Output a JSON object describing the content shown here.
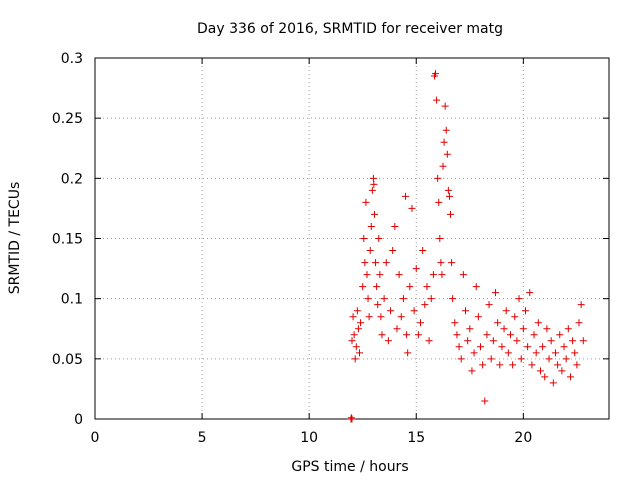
{
  "chart_data": {
    "type": "scatter",
    "title": "Day 336 of 2016, SRMTID for receiver matg",
    "xlabel": "GPS time / hours",
    "ylabel": "SRMTID / TECUs",
    "xlim": [
      0,
      24
    ],
    "ylim": [
      0,
      0.3
    ],
    "xticks": [
      0,
      5,
      10,
      15,
      20
    ],
    "xtick_labels": [
      "0",
      "5",
      "10",
      "15",
      "20"
    ],
    "yticks": [
      0,
      0.05,
      0.1,
      0.15,
      0.2,
      0.25,
      0.3
    ],
    "ytick_labels": [
      "0",
      "0.05",
      "0.1",
      "0.15",
      "0.2",
      "0.25",
      "0.3"
    ],
    "grid": true,
    "marker": "plus",
    "marker_color": "#e00000",
    "series": [
      {
        "name": "SRMTID",
        "points": [
          [
            11.95,
            0.0
          ],
          [
            11.97,
            0.001
          ],
          [
            12.0,
            0.0
          ],
          [
            12.0,
            0.065
          ],
          [
            12.05,
            0.085
          ],
          [
            12.1,
            0.07
          ],
          [
            12.15,
            0.05
          ],
          [
            12.2,
            0.06
          ],
          [
            12.25,
            0.09
          ],
          [
            12.3,
            0.075
          ],
          [
            12.35,
            0.055
          ],
          [
            12.4,
            0.08
          ],
          [
            12.5,
            0.11
          ],
          [
            12.55,
            0.15
          ],
          [
            12.6,
            0.13
          ],
          [
            12.65,
            0.18
          ],
          [
            12.7,
            0.12
          ],
          [
            12.75,
            0.1
          ],
          [
            12.8,
            0.085
          ],
          [
            12.85,
            0.14
          ],
          [
            12.9,
            0.16
          ],
          [
            12.95,
            0.19
          ],
          [
            13.0,
            0.2
          ],
          [
            13.02,
            0.195
          ],
          [
            13.05,
            0.17
          ],
          [
            13.1,
            0.13
          ],
          [
            13.15,
            0.11
          ],
          [
            13.2,
            0.095
          ],
          [
            13.25,
            0.15
          ],
          [
            13.3,
            0.12
          ],
          [
            13.35,
            0.085
          ],
          [
            13.4,
            0.07
          ],
          [
            13.5,
            0.1
          ],
          [
            13.6,
            0.13
          ],
          [
            13.7,
            0.065
          ],
          [
            13.8,
            0.09
          ],
          [
            13.9,
            0.14
          ],
          [
            14.0,
            0.16
          ],
          [
            14.1,
            0.075
          ],
          [
            14.2,
            0.12
          ],
          [
            14.3,
            0.085
          ],
          [
            14.4,
            0.1
          ],
          [
            14.5,
            0.185
          ],
          [
            14.55,
            0.07
          ],
          [
            14.6,
            0.055
          ],
          [
            14.7,
            0.11
          ],
          [
            14.8,
            0.175
          ],
          [
            14.9,
            0.09
          ],
          [
            15.0,
            0.125
          ],
          [
            15.1,
            0.07
          ],
          [
            15.2,
            0.08
          ],
          [
            15.3,
            0.14
          ],
          [
            15.4,
            0.095
          ],
          [
            15.5,
            0.11
          ],
          [
            15.6,
            0.065
          ],
          [
            15.7,
            0.1
          ],
          [
            15.8,
            0.12
          ],
          [
            15.85,
            0.285
          ],
          [
            15.9,
            0.287
          ],
          [
            15.95,
            0.265
          ],
          [
            16.0,
            0.2
          ],
          [
            16.05,
            0.18
          ],
          [
            16.1,
            0.15
          ],
          [
            16.15,
            0.13
          ],
          [
            16.2,
            0.12
          ],
          [
            16.25,
            0.21
          ],
          [
            16.3,
            0.23
          ],
          [
            16.35,
            0.26
          ],
          [
            16.4,
            0.24
          ],
          [
            16.45,
            0.22
          ],
          [
            16.5,
            0.19
          ],
          [
            16.55,
            0.185
          ],
          [
            16.6,
            0.17
          ],
          [
            16.65,
            0.13
          ],
          [
            16.7,
            0.1
          ],
          [
            16.8,
            0.08
          ],
          [
            16.9,
            0.07
          ],
          [
            17.0,
            0.06
          ],
          [
            17.1,
            0.05
          ],
          [
            17.2,
            0.12
          ],
          [
            17.3,
            0.09
          ],
          [
            17.4,
            0.065
          ],
          [
            17.5,
            0.075
          ],
          [
            17.6,
            0.04
          ],
          [
            17.7,
            0.055
          ],
          [
            17.8,
            0.11
          ],
          [
            17.9,
            0.085
          ],
          [
            18.0,
            0.06
          ],
          [
            18.1,
            0.045
          ],
          [
            18.2,
            0.015
          ],
          [
            18.3,
            0.07
          ],
          [
            18.4,
            0.095
          ],
          [
            18.5,
            0.05
          ],
          [
            18.6,
            0.065
          ],
          [
            18.7,
            0.105
          ],
          [
            18.8,
            0.08
          ],
          [
            18.9,
            0.045
          ],
          [
            19.0,
            0.06
          ],
          [
            19.1,
            0.075
          ],
          [
            19.2,
            0.09
          ],
          [
            19.3,
            0.055
          ],
          [
            19.4,
            0.07
          ],
          [
            19.5,
            0.045
          ],
          [
            19.6,
            0.085
          ],
          [
            19.7,
            0.065
          ],
          [
            19.8,
            0.1
          ],
          [
            19.9,
            0.05
          ],
          [
            20.0,
            0.075
          ],
          [
            20.1,
            0.09
          ],
          [
            20.2,
            0.06
          ],
          [
            20.3,
            0.105
          ],
          [
            20.4,
            0.045
          ],
          [
            20.5,
            0.07
          ],
          [
            20.6,
            0.055
          ],
          [
            20.7,
            0.08
          ],
          [
            20.8,
            0.04
          ],
          [
            20.9,
            0.06
          ],
          [
            21.0,
            0.035
          ],
          [
            21.1,
            0.075
          ],
          [
            21.2,
            0.05
          ],
          [
            21.3,
            0.065
          ],
          [
            21.4,
            0.03
          ],
          [
            21.5,
            0.055
          ],
          [
            21.6,
            0.045
          ],
          [
            21.7,
            0.07
          ],
          [
            21.8,
            0.04
          ],
          [
            21.9,
            0.06
          ],
          [
            22.0,
            0.05
          ],
          [
            22.1,
            0.075
          ],
          [
            22.2,
            0.035
          ],
          [
            22.3,
            0.065
          ],
          [
            22.4,
            0.055
          ],
          [
            22.5,
            0.045
          ],
          [
            22.6,
            0.08
          ],
          [
            22.7,
            0.095
          ],
          [
            22.8,
            0.065
          ]
        ]
      }
    ]
  }
}
